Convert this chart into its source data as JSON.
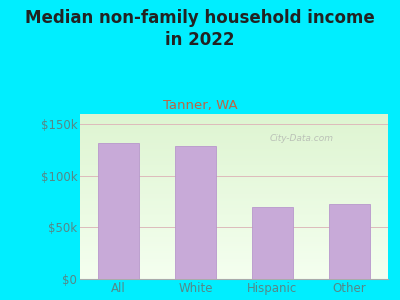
{
  "title": "Median non-family household income\nin 2022",
  "subtitle": "Tanner, WA",
  "categories": [
    "All",
    "White",
    "Hispanic",
    "Other"
  ],
  "values": [
    132000,
    129000,
    70000,
    73000
  ],
  "bar_color": "#c8aad8",
  "bar_edge_color": "#b898cc",
  "background_color": "#00eeff",
  "plot_bg_gradient_top": "#f5fdf0",
  "plot_bg_gradient_bottom": "#ddf5d0",
  "title_color": "#222222",
  "subtitle_color": "#bb6644",
  "tick_color": "#558888",
  "yticks": [
    0,
    50000,
    100000,
    150000
  ],
  "ytick_labels": [
    "$0",
    "$50k",
    "$100k",
    "$150k"
  ],
  "ylim": [
    0,
    160000
  ],
  "watermark": "City-Data.com",
  "title_fontsize": 12,
  "subtitle_fontsize": 9.5,
  "tick_fontsize": 8.5,
  "grid_color": "#ddbbbb",
  "figsize": [
    4.0,
    3.0
  ],
  "dpi": 100
}
